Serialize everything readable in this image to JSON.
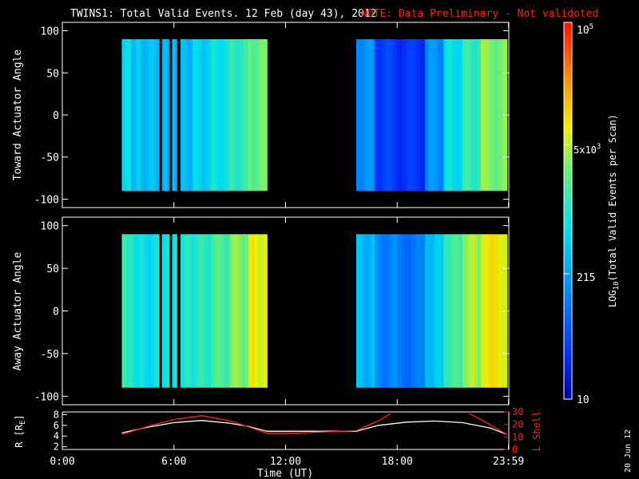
{
  "title": {
    "main": "TWINS1: Total Valid Events. 12 Feb (day  43), 2012",
    "note": "NOTE: Data Preliminary - Not validoted",
    "note_color": "#ff2020"
  },
  "stamp": "20 Jun 12",
  "chart_data": [
    {
      "type": "heatmap",
      "id": "toward",
      "ylabel": "Toward Actuator Angle",
      "ylim": [
        -110,
        110
      ],
      "yticks": [
        100,
        50,
        0,
        -50,
        -100
      ],
      "ytick_labels": [
        "100",
        "50",
        "0",
        "-50",
        "-100"
      ],
      "xlim_hours": [
        0,
        24
      ],
      "colorscale": "log",
      "data_coverage_hours": [
        [
          3.2,
          11.0
        ],
        [
          15.8,
          23.9
        ]
      ],
      "data_gaps_hours": [
        [
          5.2,
          5.35
        ],
        [
          5.75,
          5.9
        ],
        [
          6.15,
          6.35
        ]
      ],
      "columns": [
        {
          "x0": 3.2,
          "x1": 3.7,
          "log_value": 2.8
        },
        {
          "x0": 3.7,
          "x1": 4.3,
          "log_value": 2.6
        },
        {
          "x0": 4.3,
          "x1": 5.2,
          "log_value": 2.55
        },
        {
          "x0": 5.35,
          "x1": 5.75,
          "log_value": 2.5
        },
        {
          "x0": 5.9,
          "x1": 6.15,
          "log_value": 2.5
        },
        {
          "x0": 6.35,
          "x1": 7.0,
          "log_value": 2.5
        },
        {
          "x0": 7.0,
          "x1": 8.0,
          "log_value": 2.7
        },
        {
          "x0": 8.0,
          "x1": 9.0,
          "log_value": 2.85
        },
        {
          "x0": 9.0,
          "x1": 10.0,
          "log_value": 3.1
        },
        {
          "x0": 10.0,
          "x1": 11.0,
          "log_value": 3.4
        },
        {
          "x0": 15.8,
          "x1": 16.8,
          "log_value": 2.2
        },
        {
          "x0": 16.8,
          "x1": 18.0,
          "log_value": 1.6
        },
        {
          "x0": 18.0,
          "x1": 19.5,
          "log_value": 1.5
        },
        {
          "x0": 19.5,
          "x1": 20.5,
          "log_value": 2.2
        },
        {
          "x0": 20.5,
          "x1": 21.5,
          "log_value": 2.8
        },
        {
          "x0": 21.5,
          "x1": 22.5,
          "log_value": 3.1
        },
        {
          "x0": 22.5,
          "x1": 23.9,
          "log_value": 3.5
        }
      ]
    },
    {
      "type": "heatmap",
      "id": "away",
      "ylabel": "Away Actuator Angle",
      "ylim": [
        -110,
        110
      ],
      "yticks": [
        100,
        50,
        0,
        -50,
        -100
      ],
      "ytick_labels": [
        "100",
        "50",
        "0",
        "-50",
        "-100"
      ],
      "xlim_hours": [
        0,
        24
      ],
      "colorscale": "log",
      "data_coverage_hours": [
        [
          3.2,
          11.0
        ],
        [
          15.8,
          23.9
        ]
      ],
      "data_gaps_hours": [
        [
          5.2,
          5.35
        ],
        [
          5.75,
          5.9
        ],
        [
          6.15,
          6.35
        ]
      ],
      "columns": [
        {
          "x0": 3.2,
          "x1": 3.7,
          "log_value": 3.1
        },
        {
          "x0": 3.7,
          "x1": 4.3,
          "log_value": 2.9
        },
        {
          "x0": 4.3,
          "x1": 5.2,
          "log_value": 2.8
        },
        {
          "x0": 5.35,
          "x1": 5.75,
          "log_value": 2.9
        },
        {
          "x0": 5.9,
          "x1": 6.15,
          "log_value": 2.9
        },
        {
          "x0": 6.35,
          "x1": 7.0,
          "log_value": 3.0
        },
        {
          "x0": 7.0,
          "x1": 8.0,
          "log_value": 3.05
        },
        {
          "x0": 8.0,
          "x1": 9.0,
          "log_value": 3.25
        },
        {
          "x0": 9.0,
          "x1": 10.0,
          "log_value": 3.5
        },
        {
          "x0": 10.0,
          "x1": 11.0,
          "log_value": 3.85
        },
        {
          "x0": 15.8,
          "x1": 16.8,
          "log_value": 2.5
        },
        {
          "x0": 16.8,
          "x1": 18.0,
          "log_value": 2.1
        },
        {
          "x0": 18.0,
          "x1": 19.5,
          "log_value": 2.0
        },
        {
          "x0": 19.5,
          "x1": 20.5,
          "log_value": 2.6
        },
        {
          "x0": 20.5,
          "x1": 21.5,
          "log_value": 3.2
        },
        {
          "x0": 21.5,
          "x1": 22.5,
          "log_value": 3.6
        },
        {
          "x0": 22.5,
          "x1": 23.9,
          "log_value": 3.9
        }
      ]
    },
    {
      "type": "line",
      "id": "orbit",
      "ylabel": "R [R",
      "ylabel_sub": "E",
      "ylabel_close": "]",
      "ylim": [
        1.5,
        8.5
      ],
      "yticks": [
        2,
        4,
        6,
        8
      ],
      "ytick_labels": [
        "2",
        "4",
        "6",
        "8"
      ],
      "y2label": "L Shell",
      "y2lim": [
        0,
        30
      ],
      "y2ticks": [
        0,
        10,
        20,
        30
      ],
      "y2tick_labels": [
        "0",
        "10",
        "20",
        "30"
      ],
      "y2_color": "#ff2020",
      "xlabel": "Time (UT)",
      "xticks_hours": [
        0,
        6,
        12,
        18,
        23.9833
      ],
      "xtick_labels": [
        "0:00",
        "6:00",
        "12:00",
        "18:00",
        "23:59"
      ],
      "series": [
        {
          "axis": "left",
          "color": "#ffffff",
          "x": [
            3.2,
            4.5,
            6.0,
            7.5,
            9.0,
            10.0,
            11.0,
            12.5,
            14.0,
            15.8,
            17.0,
            18.5,
            20.0,
            21.5,
            23.0,
            23.9
          ],
          "y": [
            4.6,
            5.6,
            6.5,
            6.9,
            6.4,
            5.8,
            4.9,
            4.9,
            4.9,
            4.9,
            6.0,
            6.6,
            6.8,
            6.5,
            5.5,
            4.3
          ]
        },
        {
          "axis": "right",
          "color": "#ff2020",
          "x": [
            3.2,
            4.5,
            6.0,
            7.5,
            9.0,
            10.0,
            11.0,
            12.5,
            14.0,
            15.8,
            17.0,
            17.8
          ],
          "y": [
            12,
            18,
            24,
            27,
            23,
            18,
            13,
            13,
            14,
            15,
            23,
            30
          ]
        },
        {
          "axis": "right",
          "color": "#ff2020",
          "x": [
            21.7,
            22.5,
            23.9
          ],
          "y": [
            30,
            24,
            12
          ]
        }
      ]
    }
  ],
  "colorbar": {
    "label": "LOG",
    "label_sub": "10",
    "label_rest": "(Total Valid  Events per Scan)",
    "range_log": [
      1,
      5
    ],
    "tick_10_label": "10",
    "tick_215_label": "215",
    "tick_5k_base": "5x10",
    "tick_5k_exp": "3",
    "tick_top_base": "10",
    "tick_top_exp": "5",
    "tick_log_values": [
      1,
      2.332,
      3.699,
      5
    ]
  }
}
